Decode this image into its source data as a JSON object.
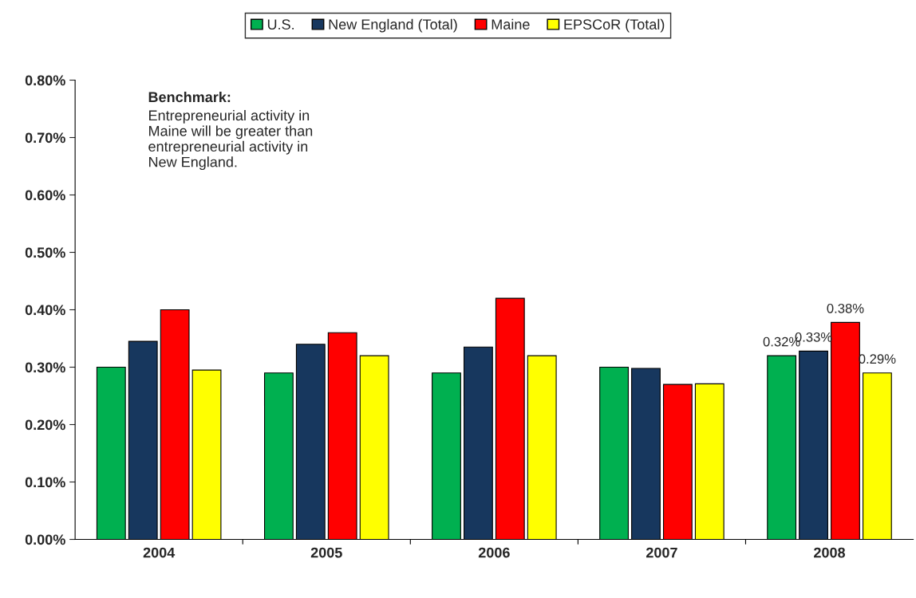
{
  "chart_data": {
    "type": "bar",
    "categories": [
      "2004",
      "2005",
      "2006",
      "2007",
      "2008"
    ],
    "series": [
      {
        "name": "U.S.",
        "color": "#00b050",
        "values": [
          0.3,
          0.29,
          0.29,
          0.3,
          0.32
        ],
        "value_labels": [
          null,
          null,
          null,
          null,
          "0.32%"
        ]
      },
      {
        "name": "New England (Total)",
        "color": "#17375e",
        "values": [
          0.345,
          0.34,
          0.335,
          0.298,
          0.328
        ],
        "value_labels": [
          null,
          null,
          null,
          null,
          "0.33%"
        ]
      },
      {
        "name": "Maine",
        "color": "#ff0000",
        "values": [
          0.4,
          0.36,
          0.42,
          0.27,
          0.378
        ],
        "value_labels": [
          null,
          null,
          null,
          null,
          "0.38%"
        ]
      },
      {
        "name": "EPSCoR (Total)",
        "color": "#ffff00",
        "values": [
          0.295,
          0.32,
          0.32,
          0.271,
          0.29
        ],
        "value_labels": [
          null,
          null,
          null,
          null,
          "0.29%"
        ]
      }
    ],
    "ylim": [
      0,
      0.8
    ],
    "yticks": [
      {
        "value": 0,
        "label": "0.00%"
      },
      {
        "value": 0.1,
        "label": "0.10%"
      },
      {
        "value": 0.2,
        "label": "0.20%"
      },
      {
        "value": 0.3,
        "label": "0.30%"
      },
      {
        "value": 0.4,
        "label": "0.40%"
      },
      {
        "value": 0.5,
        "label": "0.50%"
      },
      {
        "value": 0.6,
        "label": "0.60%"
      },
      {
        "value": 0.7,
        "label": "0.70%"
      },
      {
        "value": 0.8,
        "label": "0.80%"
      }
    ],
    "annotations": [
      "Benchmark:",
      "Entrepreneurial activity in\nMaine will be greater than\nentrepreneurial activity in\nNew England."
    ],
    "legend": "top",
    "grid": false
  }
}
